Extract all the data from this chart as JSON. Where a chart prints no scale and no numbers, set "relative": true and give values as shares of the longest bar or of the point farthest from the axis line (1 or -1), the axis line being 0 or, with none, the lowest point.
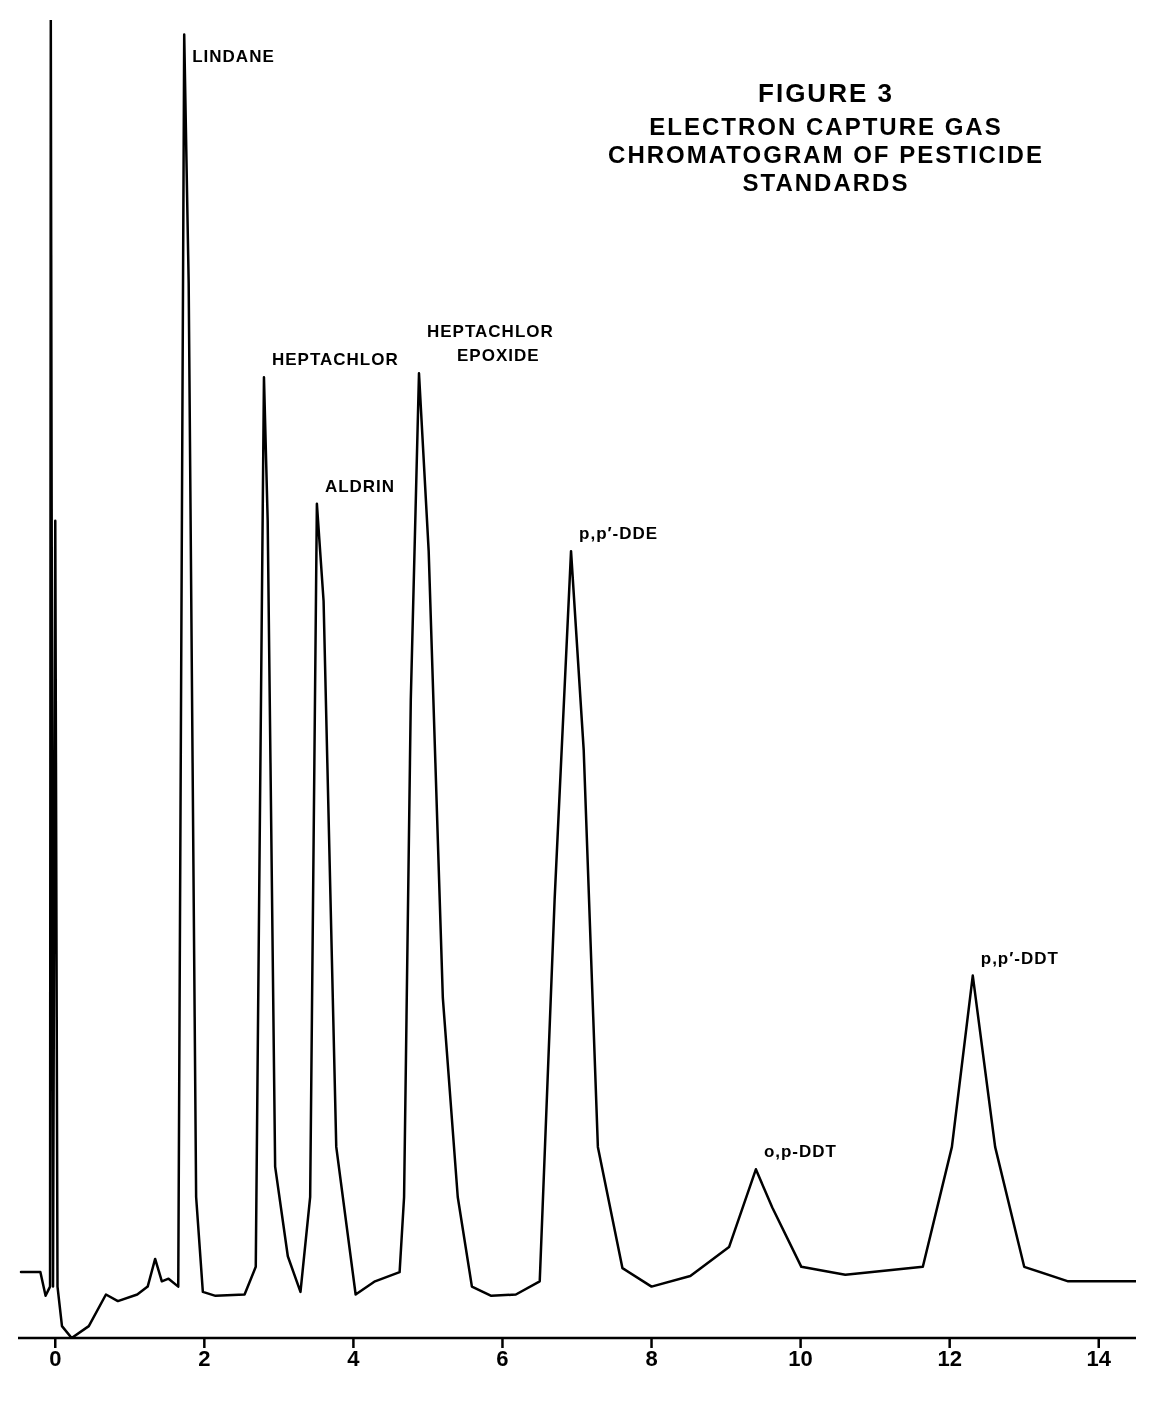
{
  "chart_data": {
    "type": "line",
    "title": "FIGURE 3",
    "subtitle": "ELECTRON CAPTURE GAS CHROMATOGRAM OF PESTICIDE STANDARDS",
    "relative": true,
    "x": [
      -0.46,
      -0.2,
      -0.13,
      -0.07,
      -0.06,
      -0.03,
      0,
      0.03,
      0.09,
      0.22,
      0.45,
      0.68,
      0.84,
      1.1,
      1.24,
      1.34,
      1.43,
      1.52,
      1.65,
      1.73,
      1.79,
      1.89,
      1.98,
      2.15,
      2.54,
      2.69,
      2.8,
      2.85,
      2.95,
      3.12,
      3.29,
      3.42,
      3.51,
      3.6,
      3.77,
      4.03,
      4.29,
      4.62,
      4.68,
      4.77,
      4.88,
      5.01,
      5.2,
      5.4,
      5.59,
      5.85,
      6.18,
      6.5,
      6.7,
      6.92,
      7.09,
      7.28,
      7.61,
      8.0,
      8.52,
      9.04,
      9.4,
      9.62,
      10.01,
      10.6,
      11.64,
      12.03,
      12.31,
      12.61,
      13.0,
      13.59,
      14.5
    ],
    "series": [
      {
        "color": "#000000",
        "values": [
          0.05,
          0.05,
          0.032,
          0.039,
          1.0,
          0.039,
          0.62,
          0.039,
          0.009,
          0.0,
          0.009,
          0.033,
          0.028,
          0.033,
          0.039,
          0.06,
          0.043,
          0.045,
          0.039,
          0.989,
          0.8,
          0.107,
          0.035,
          0.032,
          0.033,
          0.054,
          0.729,
          0.62,
          0.13,
          0.062,
          0.035,
          0.107,
          0.633,
          0.559,
          0.145,
          0.033,
          0.043,
          0.05,
          0.107,
          0.484,
          0.732,
          0.597,
          0.258,
          0.107,
          0.039,
          0.032,
          0.033,
          0.043,
          0.333,
          0.597,
          0.446,
          0.145,
          0.053,
          0.039,
          0.047,
          0.069,
          0.128,
          0.099,
          0.054,
          0.048,
          0.054,
          0.145,
          0.275,
          0.145,
          0.054,
          0.043,
          0.043
        ]
      }
    ],
    "xlim": [
      -0.5,
      14.5
    ],
    "xticks": [
      0,
      2,
      4,
      6,
      8,
      10,
      12,
      14
    ],
    "annotations": [
      {
        "text": "LINDANE",
        "x": 1.73,
        "y": 0.989
      },
      {
        "text": "HEPTACHLOR",
        "x": 2.8,
        "y": 0.729
      },
      {
        "text": "ALDRIN",
        "x": 3.51,
        "y": 0.633
      },
      {
        "text": "HEPTACHLOR EPOXIDE",
        "x": 4.88,
        "y": 0.732
      },
      {
        "text": "p,p′-DDE",
        "x": 6.92,
        "y": 0.597
      },
      {
        "text": "o,p-DDT",
        "x": 9.4,
        "y": 0.128
      },
      {
        "text": "p,p′-DDT",
        "x": 12.31,
        "y": 0.275
      }
    ],
    "line_style": "solid",
    "marker": "none"
  }
}
